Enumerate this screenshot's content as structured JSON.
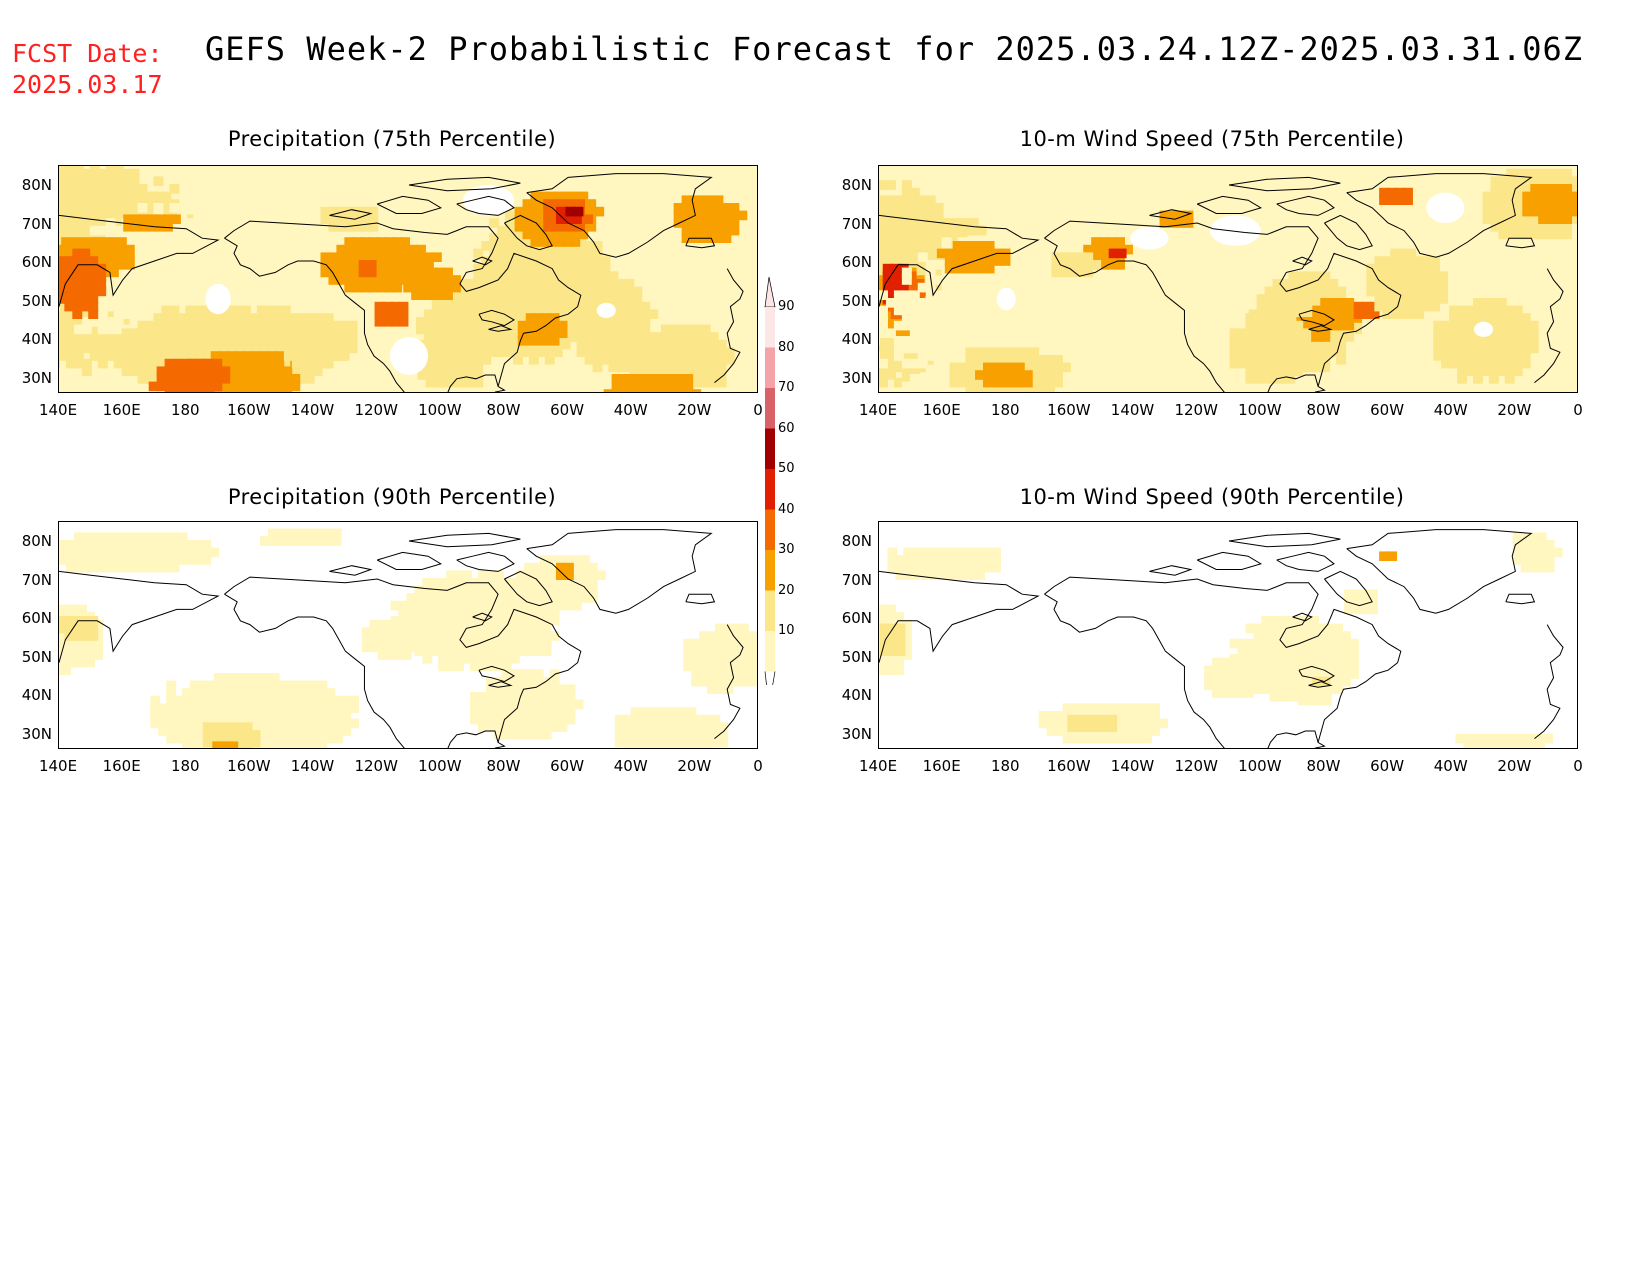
{
  "header": {
    "fcst_label": "FCST Date:",
    "fcst_date": "2025.03.17",
    "title": "GEFS Week-2 Probabilistic Forecast for 2025.03.24.12Z-2025.03.31.06Z"
  },
  "panels": [
    {
      "title": "Precipitation (75th Percentile)",
      "intensity": "high"
    },
    {
      "title": "10-m Wind Speed (75th Percentile)",
      "intensity": "high"
    },
    {
      "title": "Precipitation (90th Percentile)",
      "intensity": "low"
    },
    {
      "title": "10-m Wind Speed (90th Percentile)",
      "intensity": "low"
    }
  ],
  "axes": {
    "lat_labels": [
      "80N",
      "70N",
      "60N",
      "50N",
      "40N",
      "30N"
    ],
    "lon_labels": [
      "140E",
      "160E",
      "180",
      "160W",
      "140W",
      "120W",
      "100W",
      "80W",
      "60W",
      "40W",
      "20W",
      "0"
    ]
  },
  "colorbar": {
    "levels": [
      "90",
      "80",
      "70",
      "60",
      "50",
      "40",
      "30",
      "20",
      "10"
    ],
    "colors": [
      "#ffffff",
      "#fde6e6",
      "#f4a3a8",
      "#d96268",
      "#a00000",
      "#e02000",
      "#f56a00",
      "#f8a000",
      "#fbe68a",
      "#fff6c0"
    ]
  }
}
